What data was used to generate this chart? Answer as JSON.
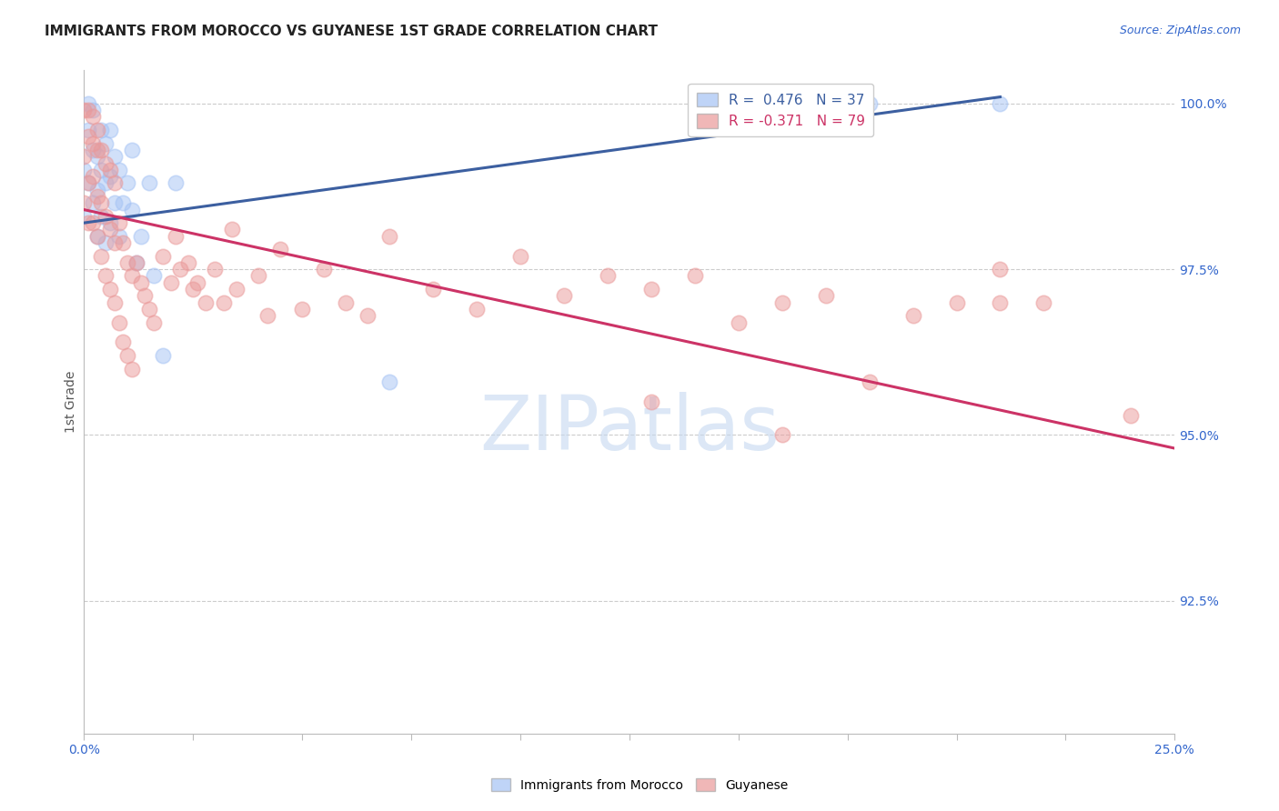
{
  "title": "IMMIGRANTS FROM MOROCCO VS GUYANESE 1ST GRADE CORRELATION CHART",
  "source": "Source: ZipAtlas.com",
  "ylabel": "1st Grade",
  "ylabel_right_labels": [
    "100.0%",
    "97.5%",
    "95.0%",
    "92.5%"
  ],
  "ylabel_right_values": [
    1.0,
    0.975,
    0.95,
    0.925
  ],
  "blue_legend": "R =  0.476   N = 37",
  "pink_legend": "R = -0.371   N = 79",
  "blue_color": "#a4c2f4",
  "pink_color": "#ea9999",
  "blue_line_color": "#3c5fa0",
  "pink_line_color": "#cc3366",
  "background_color": "#ffffff",
  "watermark": "ZIPatlas",
  "blue_points_x": [
    0.0,
    0.0,
    0.001,
    0.001,
    0.001,
    0.002,
    0.002,
    0.002,
    0.003,
    0.003,
    0.003,
    0.004,
    0.004,
    0.004,
    0.005,
    0.005,
    0.005,
    0.006,
    0.006,
    0.006,
    0.007,
    0.007,
    0.008,
    0.008,
    0.009,
    0.01,
    0.011,
    0.011,
    0.012,
    0.013,
    0.015,
    0.016,
    0.018,
    0.021,
    0.18,
    0.21,
    0.07
  ],
  "blue_points_y": [
    0.983,
    0.99,
    0.988,
    0.996,
    1.0,
    0.985,
    0.993,
    0.999,
    0.98,
    0.987,
    0.992,
    0.983,
    0.99,
    0.996,
    0.979,
    0.988,
    0.994,
    0.982,
    0.989,
    0.996,
    0.985,
    0.992,
    0.98,
    0.99,
    0.985,
    0.988,
    0.984,
    0.993,
    0.976,
    0.98,
    0.988,
    0.974,
    0.962,
    0.988,
    1.0,
    1.0,
    0.958
  ],
  "pink_points_x": [
    0.0,
    0.0,
    0.0,
    0.001,
    0.001,
    0.001,
    0.001,
    0.002,
    0.002,
    0.002,
    0.002,
    0.003,
    0.003,
    0.003,
    0.003,
    0.004,
    0.004,
    0.004,
    0.005,
    0.005,
    0.005,
    0.006,
    0.006,
    0.006,
    0.007,
    0.007,
    0.007,
    0.008,
    0.008,
    0.009,
    0.009,
    0.01,
    0.01,
    0.011,
    0.011,
    0.012,
    0.013,
    0.014,
    0.015,
    0.016,
    0.018,
    0.02,
    0.021,
    0.022,
    0.024,
    0.025,
    0.026,
    0.028,
    0.03,
    0.032,
    0.034,
    0.035,
    0.04,
    0.042,
    0.045,
    0.05,
    0.055,
    0.06,
    0.065,
    0.07,
    0.08,
    0.09,
    0.1,
    0.11,
    0.12,
    0.13,
    0.15,
    0.17,
    0.19,
    0.21,
    0.16,
    0.21,
    0.24,
    0.18,
    0.2,
    0.22,
    0.14,
    0.13,
    0.16
  ],
  "pink_points_y": [
    0.985,
    0.992,
    0.999,
    0.982,
    0.988,
    0.995,
    0.999,
    0.982,
    0.989,
    0.994,
    0.998,
    0.98,
    0.986,
    0.993,
    0.996,
    0.977,
    0.985,
    0.993,
    0.974,
    0.983,
    0.991,
    0.972,
    0.981,
    0.99,
    0.97,
    0.979,
    0.988,
    0.967,
    0.982,
    0.964,
    0.979,
    0.962,
    0.976,
    0.96,
    0.974,
    0.976,
    0.973,
    0.971,
    0.969,
    0.967,
    0.977,
    0.973,
    0.98,
    0.975,
    0.976,
    0.972,
    0.973,
    0.97,
    0.975,
    0.97,
    0.981,
    0.972,
    0.974,
    0.968,
    0.978,
    0.969,
    0.975,
    0.97,
    0.968,
    0.98,
    0.972,
    0.969,
    0.977,
    0.971,
    0.974,
    0.972,
    0.967,
    0.971,
    0.968,
    0.975,
    0.97,
    0.97,
    0.953,
    0.958,
    0.97,
    0.97,
    0.974,
    0.955,
    0.95
  ],
  "xlim": [
    0.0,
    0.25
  ],
  "ylim": [
    0.905,
    1.005
  ],
  "blue_trend_x": [
    0.0,
    0.21
  ],
  "blue_trend_y": [
    0.982,
    1.001
  ],
  "pink_trend_x": [
    0.0,
    0.25
  ],
  "pink_trend_y": [
    0.984,
    0.948
  ],
  "xtick_positions": [
    0.0,
    0.025,
    0.05,
    0.075,
    0.1,
    0.125,
    0.15,
    0.175,
    0.2,
    0.225,
    0.25
  ],
  "xtick_labels_show": {
    "0.0": "0.0%",
    "0.25": "25.0%"
  }
}
